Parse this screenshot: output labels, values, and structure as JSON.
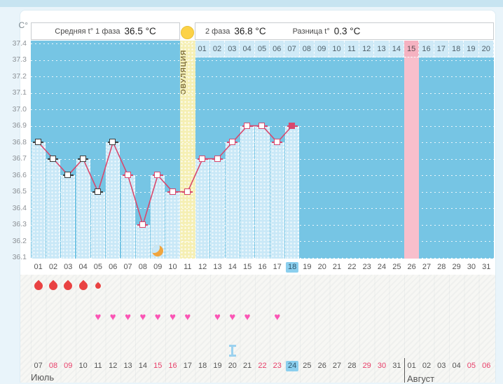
{
  "y_axis": {
    "unit": "C°",
    "ticks": [
      "37.4",
      "37.3",
      "37.2",
      "37.1",
      "37.0",
      "36.9",
      "36.8",
      "36.7",
      "36.6",
      "36.5",
      "36.4",
      "36.3",
      "36.2",
      "36.1"
    ]
  },
  "summary": {
    "phase1_label": "Средняя t° 1 фаза",
    "phase1_value": "36.5 °C",
    "phase2_label": "2 фаза",
    "phase2_value": "36.8 °C",
    "diff_label": "Разница t°",
    "diff_value": "0.3 °C"
  },
  "ovulation": {
    "label": "ОВУЛЯЦИЯ",
    "icon": "sun-icon"
  },
  "chart_data": {
    "type": "line",
    "ylabel": "C°",
    "ylim": [
      36.1,
      37.4
    ],
    "grid": "dotted-horizontal-per-0.1",
    "series": [
      {
        "name": "базальная температура",
        "points": [
          {
            "cycle_day": 1,
            "temp": 36.8,
            "marker": "black"
          },
          {
            "cycle_day": 2,
            "temp": 36.7,
            "marker": "black"
          },
          {
            "cycle_day": 3,
            "temp": 36.6,
            "marker": "black"
          },
          {
            "cycle_day": 4,
            "temp": 36.7,
            "marker": "black"
          },
          {
            "cycle_day": 5,
            "temp": 36.5,
            "marker": "black"
          },
          {
            "cycle_day": 6,
            "temp": 36.8,
            "marker": "black"
          },
          {
            "cycle_day": 7,
            "temp": 36.6,
            "marker": "pink"
          },
          {
            "cycle_day": 8,
            "temp": 36.3,
            "marker": "pink"
          },
          {
            "cycle_day": 9,
            "temp": 36.6,
            "marker": "pink"
          },
          {
            "cycle_day": 10,
            "temp": 36.5,
            "marker": "pink"
          },
          {
            "cycle_day": 11,
            "temp": 36.5,
            "marker": "pink"
          },
          {
            "cycle_day": 12,
            "temp": 36.7,
            "marker": "pink"
          },
          {
            "cycle_day": 13,
            "temp": 36.7,
            "marker": "pink"
          },
          {
            "cycle_day": 14,
            "temp": 36.8,
            "marker": "pink"
          },
          {
            "cycle_day": 15,
            "temp": 36.9,
            "marker": "pink"
          },
          {
            "cycle_day": 16,
            "temp": 36.9,
            "marker": "pink"
          },
          {
            "cycle_day": 17,
            "temp": 36.8,
            "marker": "pink"
          },
          {
            "cycle_day": 18,
            "temp": 36.9,
            "marker": "pink",
            "filled": true
          }
        ]
      }
    ],
    "cycle_day_labels": [
      "01",
      "02",
      "03",
      "04",
      "05",
      "06",
      "07",
      "08",
      "09",
      "10",
      "11",
      "12",
      "13",
      "14",
      "15",
      "16",
      "17",
      "18",
      "19",
      "20",
      "21",
      "22",
      "23",
      "24",
      "25",
      "26",
      "27",
      "28",
      "29",
      "30",
      "31"
    ],
    "current_cycle_day_label": "18",
    "ovulation_cycle_day": 11,
    "expected_period_cycle_day": 26,
    "phase2_day_labels": [
      "01",
      "02",
      "03",
      "04",
      "05",
      "06",
      "07",
      "08",
      "09",
      "10",
      "11",
      "12",
      "13",
      "14",
      "15",
      "16",
      "17",
      "18",
      "19",
      "20"
    ],
    "phase2_start_cycle_day": 12,
    "phase2_highlighted_label": "15",
    "menstruation": [
      {
        "cycle_day": 1,
        "size": "large"
      },
      {
        "cycle_day": 2,
        "size": "large"
      },
      {
        "cycle_day": 3,
        "size": "large"
      },
      {
        "cycle_day": 4,
        "size": "large"
      },
      {
        "cycle_day": 5,
        "size": "small"
      }
    ],
    "intercourse_cycle_days": [
      5,
      6,
      7,
      8,
      9,
      10,
      11,
      13,
      14,
      15,
      17
    ],
    "moon_cycle_day": 9,
    "i_marker_cycle_day": 14
  },
  "calendar": {
    "july": {
      "label": "Июль",
      "dates": [
        "07",
        "08",
        "09",
        "10",
        "11",
        "12",
        "13",
        "14",
        "15",
        "16",
        "17",
        "18",
        "19",
        "20",
        "21",
        "22",
        "23",
        "24",
        "25",
        "26",
        "27",
        "28",
        "29",
        "30",
        "31"
      ],
      "red_dates": [
        "08",
        "09",
        "15",
        "16",
        "22",
        "23",
        "29",
        "30"
      ],
      "highlighted_date": "24"
    },
    "august": {
      "label": "Август",
      "dates": [
        "01",
        "02",
        "03",
        "04",
        "05",
        "06"
      ],
      "red_dates": [
        "05",
        "06"
      ]
    }
  },
  "icons": {
    "sun": "sun-icon",
    "moon": "moon-icon",
    "blood_drop": "blood-drop-icon",
    "heart": "heart-icon",
    "i_marker": "i-marker-icon"
  },
  "colors": {
    "band": "#76c5e4",
    "bar": "#c9e8f7",
    "line": "#d8486d",
    "marker_black": "#3b3b3b",
    "ovulation_column": "#f5efb3",
    "expected_period_column": "#f8bfcc",
    "phase2_cell": "#cfeaf7",
    "phase2_cell_pink": "#f5b2c1",
    "highlight_cell": "#8bcfee",
    "drop": "#e94242",
    "heart": "#fb55b5",
    "red_date": "#e8406a",
    "sun": "#fcd247",
    "moon": "#f0a53e",
    "i_marker": "#9cd2ef",
    "top_strip": "#c7e4f1"
  }
}
